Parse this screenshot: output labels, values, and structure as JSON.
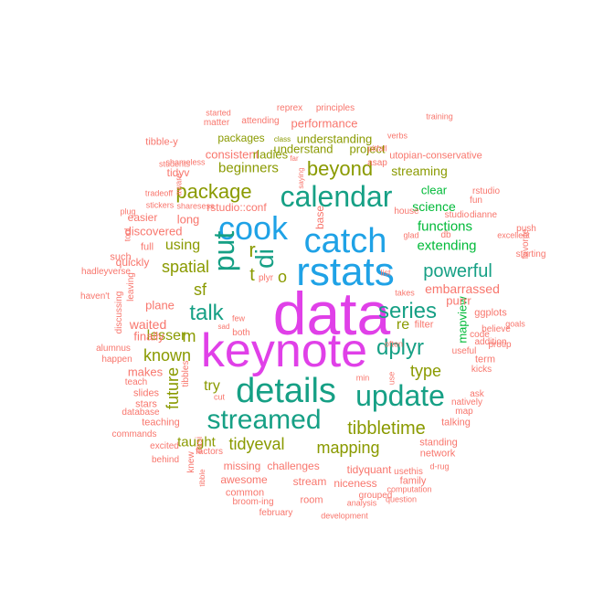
{
  "colors": {
    "red": "#f8766d",
    "olive": "#7cae00",
    "olive_dark": "#8a9a00",
    "green": "#00ba38",
    "teal": "#16a085",
    "blue": "#1fa2e6",
    "magenta": "#e040e8"
  },
  "words": [
    {
      "text": "data",
      "color": "magenta",
      "rotate": false
    },
    {
      "text": "keynote",
      "color": "magenta",
      "rotate": false
    },
    {
      "text": "rstats",
      "color": "blue",
      "rotate": false
    },
    {
      "text": "catch",
      "color": "blue",
      "rotate": false
    },
    {
      "text": "cook",
      "color": "blue",
      "rotate": false
    },
    {
      "text": "calendar",
      "color": "teal",
      "rotate": false
    },
    {
      "text": "details",
      "color": "teal",
      "rotate": false
    },
    {
      "text": "update",
      "color": "teal",
      "rotate": false
    },
    {
      "text": "streamed",
      "color": "teal",
      "rotate": false
    },
    {
      "text": "put",
      "color": "teal",
      "rotate": true
    },
    {
      "text": "di",
      "color": "teal",
      "rotate": true
    },
    {
      "text": "series",
      "color": "teal",
      "rotate": false
    },
    {
      "text": "dplyr",
      "color": "teal",
      "rotate": false
    },
    {
      "text": "talk",
      "color": "teal",
      "rotate": false
    },
    {
      "text": "powerful",
      "color": "teal",
      "rotate": false
    },
    {
      "text": "beyond",
      "color": "olive_dark",
      "rotate": false
    },
    {
      "text": "package",
      "color": "olive_dark",
      "rotate": false
    },
    {
      "text": "tibbletime",
      "color": "olive_dark",
      "rotate": false
    },
    {
      "text": "mapping",
      "color": "olive_dark",
      "rotate": false
    },
    {
      "text": "tidyeval",
      "color": "olive_dark",
      "rotate": false
    },
    {
      "text": "spatial",
      "color": "olive_dark",
      "rotate": false
    },
    {
      "text": "sf",
      "color": "olive_dark",
      "rotate": false
    },
    {
      "text": "r",
      "color": "olive_dark",
      "rotate": false
    },
    {
      "text": "t",
      "color": "olive_dark",
      "rotate": false
    },
    {
      "text": "o",
      "color": "olive_dark",
      "rotate": false
    },
    {
      "text": "m",
      "color": "olive_dark",
      "rotate": false
    },
    {
      "text": "known",
      "color": "olive_dark",
      "rotate": false
    },
    {
      "text": "type",
      "color": "olive_dark",
      "rotate": false
    },
    {
      "text": "future",
      "color": "olive_dark",
      "rotate": true
    },
    {
      "text": "lesser",
      "color": "olive_dark",
      "rotate": false
    },
    {
      "text": "using",
      "color": "olive_dark",
      "rotate": false
    },
    {
      "text": "try",
      "color": "olive_dark",
      "rotate": false
    },
    {
      "text": "taught",
      "color": "olive_dark",
      "rotate": false
    },
    {
      "text": "re",
      "color": "olive_dark",
      "rotate": false
    },
    {
      "text": "beginners",
      "color": "olive_dark",
      "rotate": false
    },
    {
      "text": "streaming",
      "color": "olive_dark",
      "rotate": false
    },
    {
      "text": "extending",
      "color": "green",
      "rotate": false
    },
    {
      "text": "functions",
      "color": "green",
      "rotate": false
    },
    {
      "text": "science",
      "color": "green",
      "rotate": false
    },
    {
      "text": "clear",
      "color": "green",
      "rotate": false
    },
    {
      "text": "mapview",
      "color": "green",
      "rotate": true
    },
    {
      "text": "embarrassed",
      "color": "red",
      "rotate": false
    },
    {
      "text": "purrr",
      "color": "red",
      "rotate": false
    },
    {
      "text": "ggplots",
      "color": "red",
      "rotate": false
    },
    {
      "text": "filter",
      "color": "red",
      "rotate": false
    },
    {
      "text": "waited",
      "color": "red",
      "rotate": false
    },
    {
      "text": "finally",
      "color": "red",
      "rotate": false
    },
    {
      "text": "makes",
      "color": "red",
      "rotate": false
    },
    {
      "text": "long",
      "color": "red",
      "rotate": false
    },
    {
      "text": "easier",
      "color": "red",
      "rotate": false
    },
    {
      "text": "discovered",
      "color": "red",
      "rotate": false
    },
    {
      "text": "quickly",
      "color": "red",
      "rotate": false
    },
    {
      "text": "plane",
      "color": "red",
      "rotate": false
    },
    {
      "text": "full",
      "color": "red",
      "rotate": false
    },
    {
      "text": "such",
      "color": "red",
      "rotate": false
    },
    {
      "text": "hadleyverse",
      "color": "red",
      "rotate": false
    },
    {
      "text": "haven't",
      "color": "red",
      "rotate": false
    },
    {
      "text": "leaving",
      "color": "red",
      "rotate": true
    },
    {
      "text": "discussing",
      "color": "red",
      "rotate": true
    },
    {
      "text": "alumnus",
      "color": "red",
      "rotate": false
    },
    {
      "text": "happen",
      "color": "red",
      "rotate": false
    },
    {
      "text": "teach",
      "color": "red",
      "rotate": false
    },
    {
      "text": "slides",
      "color": "red",
      "rotate": false
    },
    {
      "text": "stars",
      "color": "red",
      "rotate": false
    },
    {
      "text": "tibbles",
      "color": "red",
      "rotate": true
    },
    {
      "text": "database",
      "color": "red",
      "rotate": false
    },
    {
      "text": "teaching",
      "color": "red",
      "rotate": false
    },
    {
      "text": "commands",
      "color": "red",
      "rotate": false
    },
    {
      "text": "excited",
      "color": "red",
      "rotate": false
    },
    {
      "text": "behind",
      "color": "red",
      "rotate": false
    },
    {
      "text": "knew",
      "color": "red",
      "rotate": true
    },
    {
      "text": "tibble",
      "color": "red",
      "rotate": true
    },
    {
      "text": "easi",
      "color": "red",
      "rotate": true
    },
    {
      "text": "factors",
      "color": "red",
      "rotate": false
    },
    {
      "text": "missing",
      "color": "red",
      "rotate": false
    },
    {
      "text": "challenges",
      "color": "red",
      "rotate": false
    },
    {
      "text": "awesome",
      "color": "red",
      "rotate": false
    },
    {
      "text": "stream",
      "color": "red",
      "rotate": false
    },
    {
      "text": "common",
      "color": "red",
      "rotate": false
    },
    {
      "text": "broom-ing",
      "color": "red",
      "rotate": false
    },
    {
      "text": "room",
      "color": "red",
      "rotate": false
    },
    {
      "text": "february",
      "color": "red",
      "rotate": false
    },
    {
      "text": "development",
      "color": "red",
      "rotate": false
    },
    {
      "text": "niceness",
      "color": "red",
      "rotate": false
    },
    {
      "text": "grouped",
      "color": "red",
      "rotate": false
    },
    {
      "text": "analysis",
      "color": "red",
      "rotate": false
    },
    {
      "text": "tidyquant",
      "color": "red",
      "rotate": false
    },
    {
      "text": "usethis",
      "color": "red",
      "rotate": false
    },
    {
      "text": "family",
      "color": "red",
      "rotate": false
    },
    {
      "text": "computation",
      "color": "red",
      "rotate": false
    },
    {
      "text": "question",
      "color": "red",
      "rotate": false
    },
    {
      "text": "standing",
      "color": "red",
      "rotate": false
    },
    {
      "text": "network",
      "color": "red",
      "rotate": false
    },
    {
      "text": "d-rug",
      "color": "red",
      "rotate": false
    },
    {
      "text": "talking",
      "color": "red",
      "rotate": false
    },
    {
      "text": "map",
      "color": "red",
      "rotate": false
    },
    {
      "text": "natively",
      "color": "red",
      "rotate": false
    },
    {
      "text": "ask",
      "color": "red",
      "rotate": false
    },
    {
      "text": "useful",
      "color": "red",
      "rotate": false
    },
    {
      "text": "kicks",
      "color": "red",
      "rotate": false
    },
    {
      "text": "term",
      "color": "red",
      "rotate": false
    },
    {
      "text": "addition",
      "color": "red",
      "rotate": false
    },
    {
      "text": "protip",
      "color": "red",
      "rotate": false
    },
    {
      "text": "goals",
      "color": "red",
      "rotate": false
    },
    {
      "text": "believe",
      "color": "red",
      "rotate": false
    },
    {
      "text": "code",
      "color": "red",
      "rotate": false
    },
    {
      "text": "favorite",
      "color": "red",
      "rotate": true
    },
    {
      "text": "starting",
      "color": "red",
      "rotate": false
    },
    {
      "text": "push",
      "color": "red",
      "rotate": false
    },
    {
      "text": "excellent",
      "color": "red",
      "rotate": false
    },
    {
      "text": "fun",
      "color": "red",
      "rotate": false
    },
    {
      "text": "rstudio",
      "color": "red",
      "rotate": false
    },
    {
      "text": "dianne",
      "color": "red",
      "rotate": false
    },
    {
      "text": "studio",
      "color": "red",
      "rotate": false
    },
    {
      "text": "house",
      "color": "red",
      "rotate": false
    },
    {
      "text": "glad",
      "color": "red",
      "rotate": false
    },
    {
      "text": "db",
      "color": "red",
      "rotate": false
    },
    {
      "text": "takes",
      "color": "red",
      "rotate": false
    },
    {
      "text": "often",
      "color": "red",
      "rotate": false
    },
    {
      "text": "list",
      "color": "red",
      "rotate": false
    },
    {
      "text": "use",
      "color": "red",
      "rotate": true
    },
    {
      "text": "min",
      "color": "red",
      "rotate": false
    },
    {
      "text": "cut",
      "color": "red",
      "rotate": false
    },
    {
      "text": "few",
      "color": "red",
      "rotate": false
    },
    {
      "text": "both",
      "color": "red",
      "rotate": false
    },
    {
      "text": "plyr",
      "color": "red",
      "rotate": false
    },
    {
      "text": "sad",
      "color": "red",
      "rotate": false
    },
    {
      "text": "base",
      "color": "red",
      "rotate": true
    },
    {
      "text": "rstudio::conf",
      "color": "red",
      "rotate": false
    },
    {
      "text": "sharesess",
      "color": "red",
      "rotate": false
    },
    {
      "text": "tradeoff",
      "color": "red",
      "rotate": false
    },
    {
      "text": "stickers",
      "color": "red",
      "rotate": false
    },
    {
      "text": "plug",
      "color": "red",
      "rotate": false
    },
    {
      "text": "tool",
      "color": "red",
      "rotate": true
    },
    {
      "text": "aware",
      "color": "red",
      "rotate": true
    },
    {
      "text": "tidyv",
      "color": "red",
      "rotate": false
    },
    {
      "text": "students",
      "color": "red",
      "rotate": false
    },
    {
      "text": "tibble-y",
      "color": "red",
      "rotate": false
    },
    {
      "text": "shameless",
      "color": "red",
      "rotate": false
    },
    {
      "text": "matter",
      "color": "red",
      "rotate": false
    },
    {
      "text": "attending",
      "color": "red",
      "rotate": false
    },
    {
      "text": "started",
      "color": "red",
      "rotate": false
    },
    {
      "text": "reprex",
      "color": "red",
      "rotate": false
    },
    {
      "text": "principles",
      "color": "red",
      "rotate": false
    },
    {
      "text": "performance",
      "color": "red",
      "rotate": false
    },
    {
      "text": "understanding",
      "color": "olive_dark",
      "rotate": false
    },
    {
      "text": "understand",
      "color": "olive_dark",
      "rotate": false
    },
    {
      "text": "project",
      "color": "olive_dark",
      "rotate": false
    },
    {
      "text": "packages",
      "color": "olive_dark",
      "rotate": false
    },
    {
      "text": "consistent",
      "color": "red",
      "rotate": false
    },
    {
      "text": "rladies",
      "color": "olive_dark",
      "rotate": false
    },
    {
      "text": "class",
      "color": "olive_dark",
      "rotate": false
    },
    {
      "text": "far",
      "color": "red",
      "rotate": false
    },
    {
      "text": "saying",
      "color": "red",
      "rotate": true
    },
    {
      "text": "asap",
      "color": "red",
      "rotate": false
    },
    {
      "text": "pitfall",
      "color": "red",
      "rotate": false
    },
    {
      "text": "verbs",
      "color": "red",
      "rotate": false
    },
    {
      "text": "training",
      "color": "red",
      "rotate": false
    },
    {
      "text": "utopian-conservative",
      "color": "red",
      "rotate": false
    },
    {
      "text": "workshop",
      "color": "red",
      "rotate": false
    }
  ]
}
